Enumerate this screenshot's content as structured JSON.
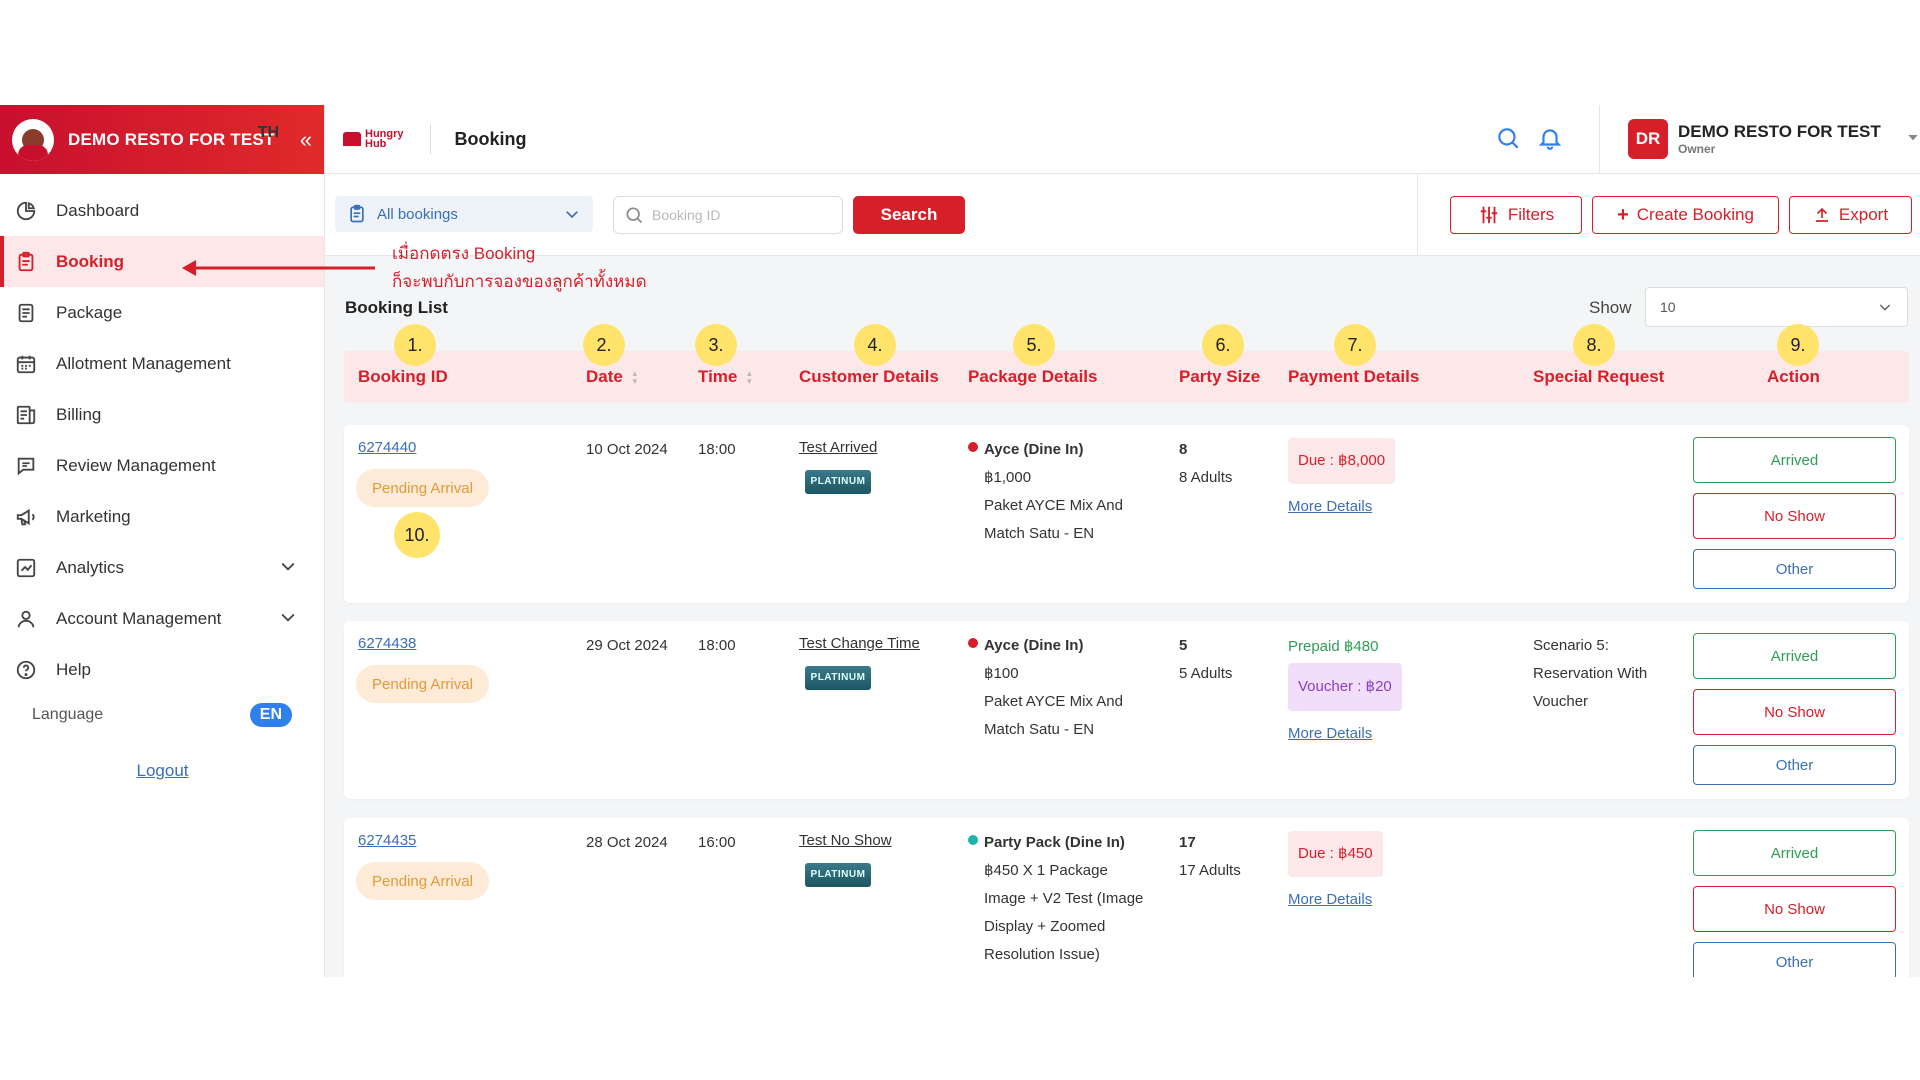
{
  "brand": {
    "name": "DEMO RESTO FOR TEST"
  },
  "sidebar": {
    "items": [
      {
        "label": "Dashboard"
      },
      {
        "label": "Booking"
      },
      {
        "label": "Package"
      },
      {
        "label": "Allotment Management"
      },
      {
        "label": "Billing"
      },
      {
        "label": "Review Management"
      },
      {
        "label": "Marketing"
      },
      {
        "label": "Analytics"
      },
      {
        "label": "Account Management"
      },
      {
        "label": "Help"
      }
    ],
    "language_label": "Language",
    "lang_th": "TH",
    "lang_en": "EN",
    "logout": "Logout"
  },
  "topbar": {
    "logo_line1": "Hungry",
    "logo_line2": "Hub",
    "title": "Booking",
    "user_initials": "DR",
    "user_name": "DEMO RESTO FOR TEST",
    "user_role": "Owner"
  },
  "toolbar": {
    "filter_value": "All bookings",
    "search_placeholder": "Booking ID",
    "search_button": "Search",
    "filters_button": "Filters",
    "create_button": "Create Booking",
    "export_button": "Export"
  },
  "annotation": {
    "line1": "เมื่อกดตรง Booking",
    "line2": "ก็จะพบกับการจองของลูกค้าทั้งหมด"
  },
  "list": {
    "title": "Booking List",
    "show_label": "Show",
    "show_value": "10",
    "columns": [
      "Booking ID",
      "Date",
      "Time",
      "Customer Details",
      "Package Details",
      "Party Size",
      "Payment Details",
      "Special Request",
      "Action"
    ],
    "markers": [
      "1.",
      "2.",
      "3.",
      "4.",
      "5.",
      "6.",
      "7.",
      "8.",
      "9.",
      "10."
    ]
  },
  "bookings": [
    {
      "id": "6274440",
      "status": "Pending Arrival",
      "date": "10 Oct 2024",
      "time": "18:00",
      "customer": "Test Arrived",
      "tier": "PLATINUM",
      "package_dot": "#d71f2a",
      "package_lines": [
        "Ayce (Dine In)",
        "฿1,000",
        "Paket AYCE Mix And",
        "Match Satu - EN"
      ],
      "party_count": "8",
      "party_desc": "8 Adults",
      "payment_due": "Due : ฿8,000",
      "more": "More Details",
      "special": [],
      "actions": [
        "Arrived",
        "No Show",
        "Other"
      ]
    },
    {
      "id": "6274438",
      "status": "Pending Arrival",
      "date": "29 Oct 2024",
      "time": "18:00",
      "customer": "Test Change Time",
      "tier": "PLATINUM",
      "package_dot": "#d71f2a",
      "package_lines": [
        "Ayce (Dine In)",
        "฿100",
        "Paket AYCE Mix And",
        "Match Satu - EN"
      ],
      "party_count": "5",
      "party_desc": "5 Adults",
      "payment_prepaid": "Prepaid ฿480",
      "payment_voucher": "Voucher : ฿20",
      "more": "More Details",
      "special": [
        "Scenario 5:",
        "Reservation With",
        "Voucher"
      ],
      "actions": [
        "Arrived",
        "No Show",
        "Other"
      ]
    },
    {
      "id": "6274435",
      "status": "Pending Arrival",
      "date": "28 Oct 2024",
      "time": "16:00",
      "customer": "Test No Show",
      "tier": "PLATINUM",
      "package_dot": "#1ab5a6",
      "package_lines": [
        "Party Pack (Dine In)",
        "฿450 X 1 Package",
        "Image + V2 Test (Image",
        "Display + Zoomed",
        "Resolution Issue)"
      ],
      "party_count": "17",
      "party_desc": "17 Adults",
      "payment_due": "Due : ฿450",
      "more": "More Details",
      "special": [],
      "actions": [
        "Arrived",
        "No Show",
        "Other"
      ]
    }
  ],
  "colors": {
    "brand_red": "#d71f2a",
    "arrived_green": "#2e9e56",
    "link_blue": "#3b6fb6",
    "marker_yellow": "#ffe36b"
  }
}
